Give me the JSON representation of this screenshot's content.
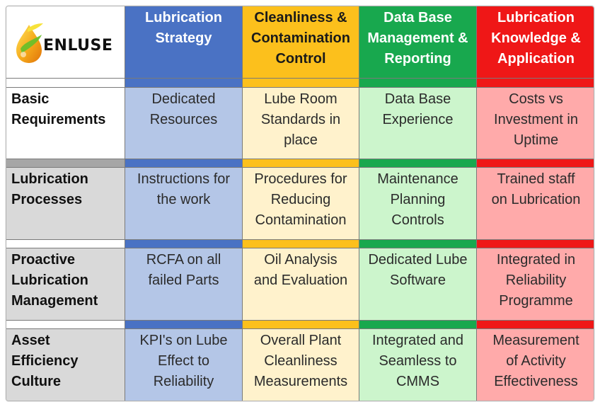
{
  "logo": {
    "text": "ENLUSE",
    "icon": "oil-drop-icon"
  },
  "columns": [
    {
      "label": "Lubrication\nStrategy",
      "color": "#4a72c4"
    },
    {
      "label": "Cleanliness &\nContamination\nControl",
      "color": "#fcc01c"
    },
    {
      "label": "Data Base\nManagement &\nReporting",
      "color": "#18a84e"
    },
    {
      "label": "Lubrication\nKnowledge &\nApplication",
      "color": "#ef1717"
    }
  ],
  "rows": [
    {
      "label": "Basic\nRequirements",
      "cells": [
        "Dedicated\nResources",
        "Lube Room\nStandards in\nplace",
        "Data Base\nExperience",
        "Costs vs\nInvestment in\nUptime"
      ]
    },
    {
      "label": "Lubrication\nProcesses",
      "cells": [
        "Instructions for\nthe work",
        "Procedures for\nReducing\nContamination",
        "Maintenance\nPlanning\nControls",
        "Trained staff\non Lubrication"
      ]
    },
    {
      "label": "Proactive\nLubrication\nManagement",
      "cells": [
        "RCFA on all\nfailed Parts",
        "Oil Analysis\nand Evaluation",
        "Dedicated Lube\nSoftware",
        "Integrated in\nReliability\nProgramme"
      ]
    },
    {
      "label": "Asset\nEfficiency\nCulture",
      "cells": [
        "KPI's on Lube\nEffect to\nReliability",
        "Overall Plant\nCleanliness\nMeasurements",
        "Integrated and\nSeamless to\nCMMS",
        "Measurement\nof Activity\nEffectiveness"
      ]
    }
  ]
}
